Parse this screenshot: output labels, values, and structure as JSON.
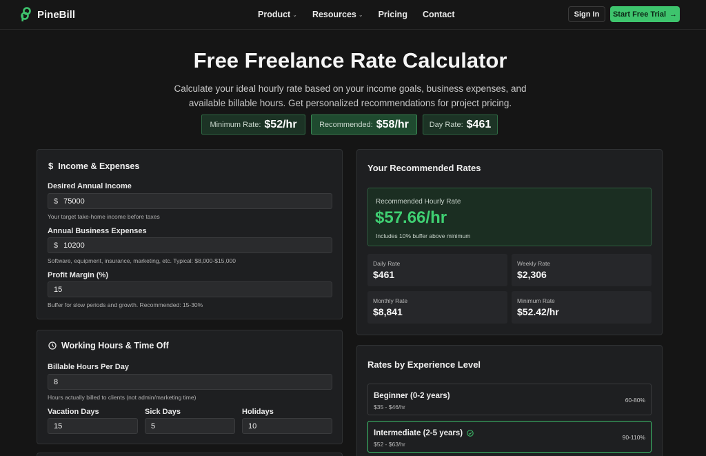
{
  "brand": {
    "name": "PineBill"
  },
  "nav": {
    "items": [
      {
        "label": "Product",
        "has_dropdown": true
      },
      {
        "label": "Resources",
        "has_dropdown": true
      },
      {
        "label": "Pricing",
        "has_dropdown": false
      },
      {
        "label": "Contact",
        "has_dropdown": false
      }
    ],
    "sign_in": "Sign In",
    "trial": "Start Free Trial"
  },
  "hero": {
    "title": "Free Freelance Rate Calculator",
    "subtitle": "Calculate your ideal hourly rate based on your income goals, business expenses, and available billable hours. Get personalized recommendations for project pricing.",
    "pills": [
      {
        "label": "Minimum Rate:",
        "value": "$52/hr"
      },
      {
        "label": "Recommended:",
        "value": "$58/hr"
      },
      {
        "label": "Day Rate:",
        "value": "$461"
      }
    ]
  },
  "income": {
    "title": "Income & Expenses",
    "icon": "dollar-icon",
    "annual_income": {
      "label": "Desired Annual Income",
      "prefix": "$",
      "value": "75000",
      "hint": "Your target take-home income before taxes"
    },
    "expenses": {
      "label": "Annual Business Expenses",
      "prefix": "$",
      "value": "10200",
      "hint": "Software, equipment, insurance, marketing, etc. Typical: $8,000-$15,000"
    },
    "profit": {
      "label": "Profit Margin (%)",
      "value": "15",
      "hint": "Buffer for slow periods and growth. Recommended: 15-30%"
    }
  },
  "hours": {
    "title": "Working Hours & Time Off",
    "icon": "clock-icon",
    "billable": {
      "label": "Billable Hours Per Day",
      "value": "8",
      "hint": "Hours actually billed to clients (not admin/marketing time)"
    },
    "vacation": {
      "label": "Vacation Days",
      "value": "15"
    },
    "sick": {
      "label": "Sick Days",
      "value": "5"
    },
    "holidays": {
      "label": "Holidays",
      "value": "10"
    }
  },
  "rates": {
    "title": "Your Recommended Rates",
    "recommended": {
      "label": "Recommended Hourly Rate",
      "value": "$57.66/hr",
      "note": "Includes 10% buffer above minimum"
    },
    "stats": [
      {
        "label": "Daily Rate",
        "value": "$461"
      },
      {
        "label": "Weekly Rate",
        "value": "$2,306"
      },
      {
        "label": "Monthly Rate",
        "value": "$8,841"
      },
      {
        "label": "Minimum Rate",
        "value": "$52.42/hr"
      }
    ]
  },
  "experience": {
    "title": "Rates by Experience Level",
    "levels": [
      {
        "name": "Beginner (0-2 years)",
        "range": "$35 - $46/hr",
        "pct": "60-80%",
        "active": false
      },
      {
        "name": "Intermediate (2-5 years)",
        "range": "$52 - $63/hr",
        "pct": "90-110%",
        "active": true
      }
    ]
  },
  "colors": {
    "accent": "#3ec46d",
    "background": "#151515",
    "card": "#1e1f21"
  }
}
